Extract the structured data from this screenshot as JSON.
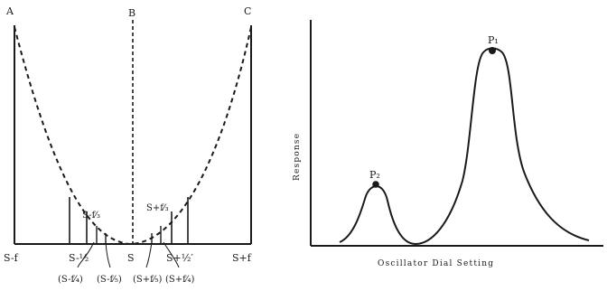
{
  "left_diagram": {
    "corner_labels": {
      "a": "A",
      "b": "B",
      "c": "C"
    },
    "baseline_labels": {
      "left_end": "S-f",
      "left_inner": "S-½",
      "center": "S",
      "right_inner": "S+½′",
      "right_end": "S+f"
    },
    "inner_labels": {
      "left": "S-f⁄₃",
      "right": "S+f⁄₃"
    },
    "bottom_labels": [
      "(S-f⁄₄)",
      "(S-f⁄₅)",
      "(S+f⁄₅)",
      "(S+f⁄₄)"
    ]
  },
  "right_chart": {
    "ylabel": "Response",
    "xlabel": "Oscillator Dial Setting",
    "peak_labels": {
      "p1": "P₁",
      "p2": "P₂"
    }
  }
}
